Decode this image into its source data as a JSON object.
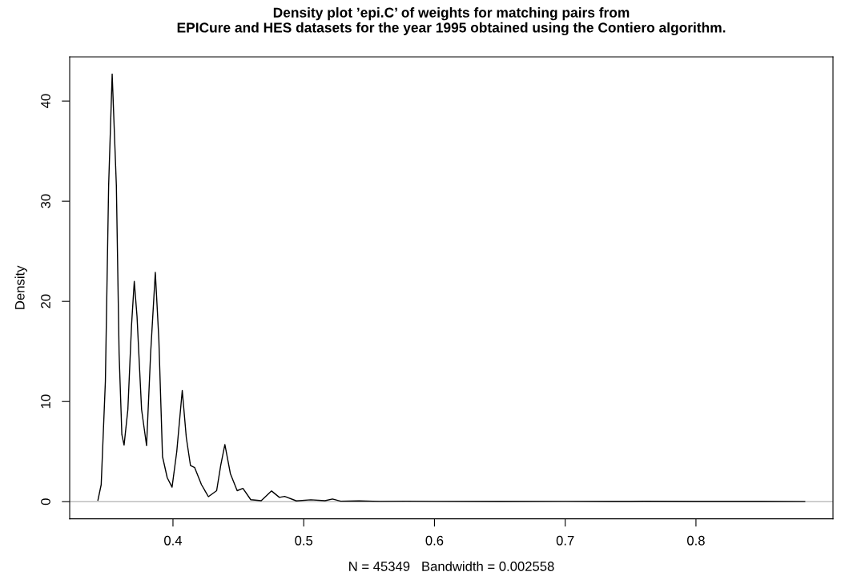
{
  "chart_data": {
    "type": "line",
    "title": "Density plot ’epi.C’ of weights for matching pairs from\nEPICure and HES datasets for the year 1995 obtained using the Contiero algorithm.",
    "xlabel": "N = 45349   Bandwidth = 0.002558",
    "ylabel": "Density",
    "series": [
      {
        "color": "#000000",
        "x": [
          0.3426,
          0.3451,
          0.3483,
          0.3508,
          0.3535,
          0.3567,
          0.3588,
          0.3609,
          0.3626,
          0.3655,
          0.3683,
          0.3704,
          0.3725,
          0.376,
          0.3798,
          0.3829,
          0.3865,
          0.3892,
          0.392,
          0.3956,
          0.3993,
          0.4029,
          0.4071,
          0.4102,
          0.4134,
          0.4166,
          0.4218,
          0.4271,
          0.4334,
          0.4365,
          0.4397,
          0.4439,
          0.4491,
          0.4535,
          0.4595,
          0.4675,
          0.4754,
          0.4814,
          0.4854,
          0.4944,
          0.5054,
          0.5163,
          0.522,
          0.5283,
          0.5423,
          0.5583,
          0.5783,
          0.6,
          0.65,
          0.7,
          0.75,
          0.76,
          0.8,
          0.85,
          0.8832
        ],
        "values": [
          0.14,
          1.7,
          12.0,
          31.6,
          42.7,
          31.6,
          14.8,
          6.7,
          5.65,
          9.2,
          17.6,
          22.0,
          18.5,
          9.2,
          5.6,
          14.8,
          22.9,
          16.2,
          4.5,
          2.4,
          1.45,
          5.0,
          11.1,
          6.4,
          3.6,
          3.4,
          1.7,
          0.5,
          1.1,
          3.6,
          5.7,
          2.8,
          1.1,
          1.33,
          0.2,
          0.1,
          1.07,
          0.43,
          0.53,
          0.08,
          0.19,
          0.1,
          0.27,
          0.05,
          0.08,
          0.03,
          0.05,
          0.03,
          0.02,
          0.03,
          0.02,
          0.04,
          0.02,
          0.02,
          0.01
        ]
      }
    ],
    "xlim": [
      0.321,
      0.9048
    ],
    "ylim": [
      -1.708,
      44.41
    ],
    "xticks": [
      0.4,
      0.5,
      0.6,
      0.7,
      0.8
    ],
    "yticks": [
      0,
      10,
      20,
      30,
      40
    ],
    "ref_lines": [
      {
        "axis": "y",
        "value": 0,
        "color": "#bebebe"
      }
    ],
    "grid": false,
    "legend": false
  }
}
